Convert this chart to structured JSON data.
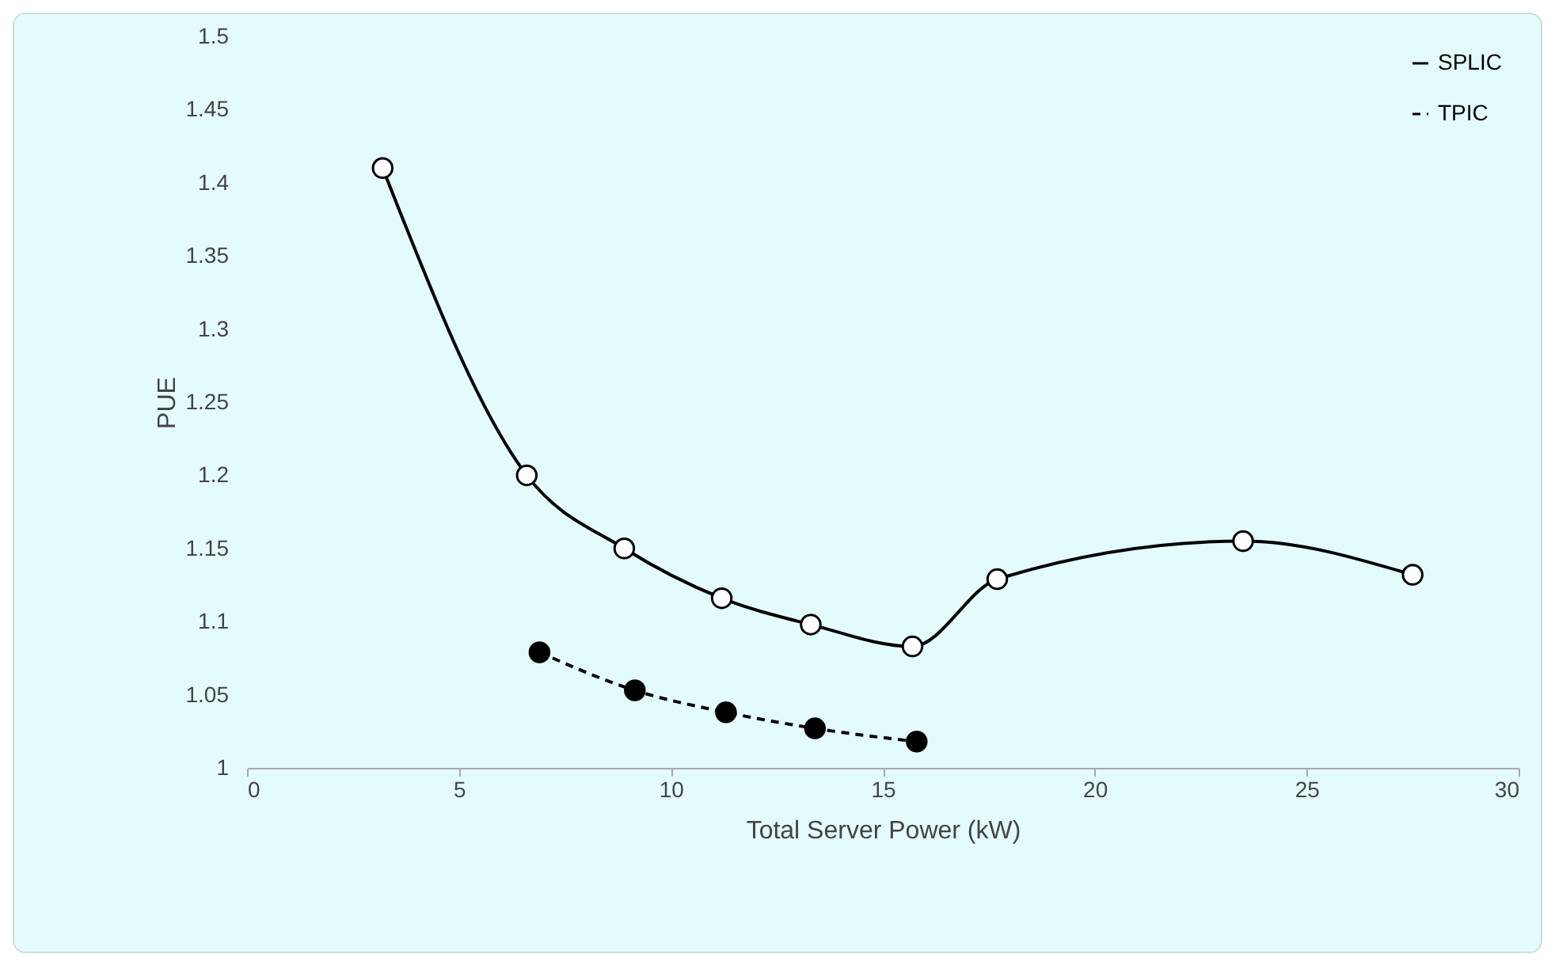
{
  "chart_data": {
    "type": "line",
    "xlabel": "Total Server Power (kW)",
    "ylabel": "PUE",
    "xlim": [
      0,
      30
    ],
    "xticks": [
      0,
      5,
      10,
      15,
      20,
      25,
      30
    ],
    "ylim": [
      1,
      1.5
    ],
    "yticks": [
      1,
      1.05,
      1.1,
      1.15,
      1.2,
      1.25,
      1.3,
      1.35,
      1.4,
      1.45,
      1.5
    ],
    "grid": false,
    "legend": "top right",
    "marker": "circle",
    "series": [
      {
        "name": "SPLIC",
        "color": "#000000",
        "line_style": "solid",
        "x": [
          3.2,
          6.6,
          8.9,
          11.2,
          13.3,
          15.7,
          17.7,
          23.5,
          27.5
        ],
        "values": [
          1.41,
          1.2,
          1.15,
          1.116,
          1.098,
          1.083,
          1.129,
          1.155,
          1.132
        ]
      },
      {
        "name": "TPIC",
        "color": "#000000",
        "line_style": "dashed",
        "x": [
          6.9,
          9.15,
          11.3,
          13.4,
          15.8
        ],
        "values": [
          1.079,
          1.053,
          1.038,
          1.027,
          1.018
        ]
      }
    ]
  }
}
